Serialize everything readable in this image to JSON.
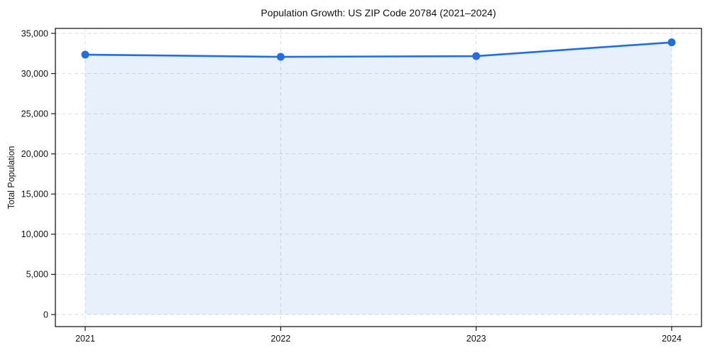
{
  "chart_data": {
    "type": "area",
    "title": "Population Growth: US ZIP Code 20784 (2021–2024)",
    "xlabel": "",
    "ylabel": "Total Population",
    "categories": [
      "2021",
      "2022",
      "2023",
      "2024"
    ],
    "series": [
      {
        "name": "Total Population",
        "values": [
          32350,
          32080,
          32170,
          33880
        ]
      }
    ],
    "ylim": [
      0,
      35000
    ],
    "yticks": [
      0,
      5000,
      10000,
      15000,
      20000,
      25000,
      30000,
      35000
    ],
    "grid": true,
    "grid_style": "dashed",
    "legend_position": "none",
    "colors": {
      "line": "#1f6ee5",
      "marker": "#1f6ee5",
      "fill": "#1f6ee5",
      "fill_opacity": 0.1,
      "grid": "#d9d9d9",
      "spine": "#1a1a1a",
      "text": "#111111"
    }
  }
}
